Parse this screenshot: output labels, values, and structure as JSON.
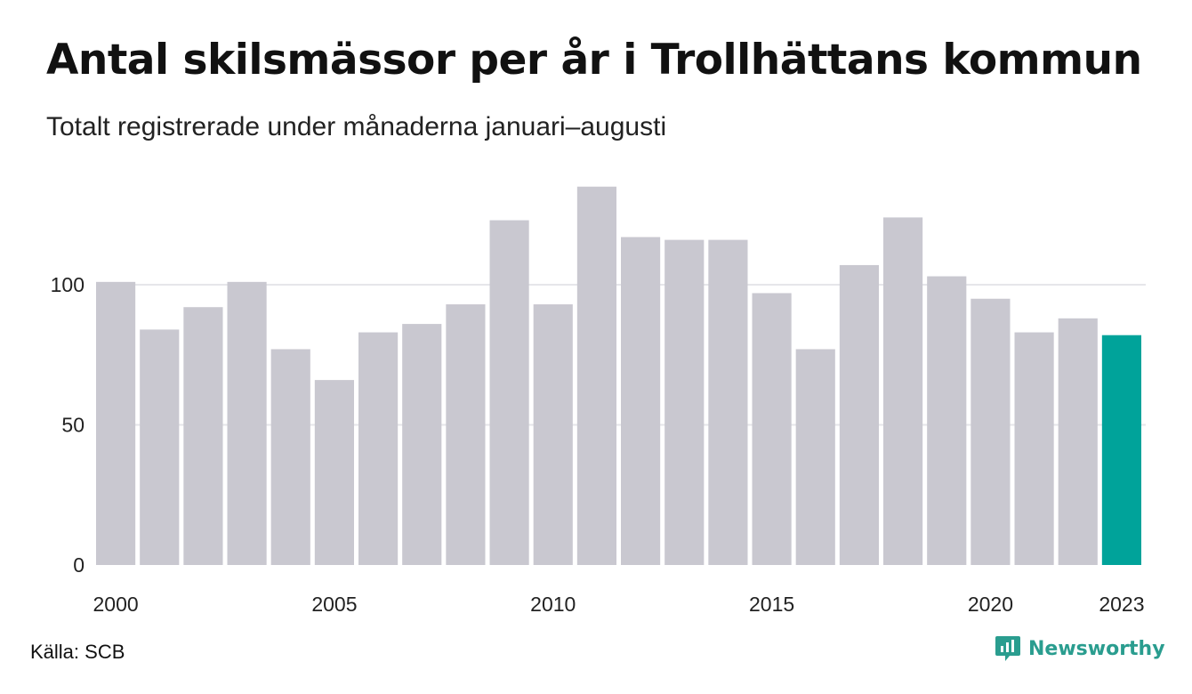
{
  "header": {
    "title": "Antal skilsmässor per år i Trollhättans kommun",
    "subtitle": "Totalt registrerade under månaderna januari–augusti"
  },
  "footer": {
    "source": "Källa: SCB",
    "brand": "Newsworthy",
    "brand_icon": "newsworthy-logo-icon"
  },
  "colors": {
    "bar": "#c9c8d0",
    "highlight": "#00a39a",
    "grid": "#e6e6ea",
    "brand": "#2a9d8f"
  },
  "chart_data": {
    "type": "bar",
    "categories": [
      "2000",
      "2001",
      "2002",
      "2003",
      "2004",
      "2005",
      "2006",
      "2007",
      "2008",
      "2009",
      "2010",
      "2011",
      "2012",
      "2013",
      "2014",
      "2015",
      "2016",
      "2017",
      "2018",
      "2019",
      "2020",
      "2021",
      "2022",
      "2023"
    ],
    "values": [
      101,
      84,
      92,
      101,
      77,
      66,
      83,
      86,
      93,
      123,
      93,
      135,
      117,
      116,
      116,
      97,
      77,
      107,
      124,
      103,
      95,
      83,
      88,
      82
    ],
    "highlight_category": "2023",
    "x_tick_labels": [
      "2000",
      "2005",
      "2010",
      "2015",
      "2020",
      "2023"
    ],
    "y_ticks": [
      0,
      50,
      100
    ],
    "ylim": [
      0,
      140
    ],
    "grid": true,
    "title": "Antal skilsmässor per år i Trollhättans kommun",
    "subtitle": "Totalt registrerade under månaderna januari–augusti",
    "xlabel": "",
    "ylabel": ""
  }
}
